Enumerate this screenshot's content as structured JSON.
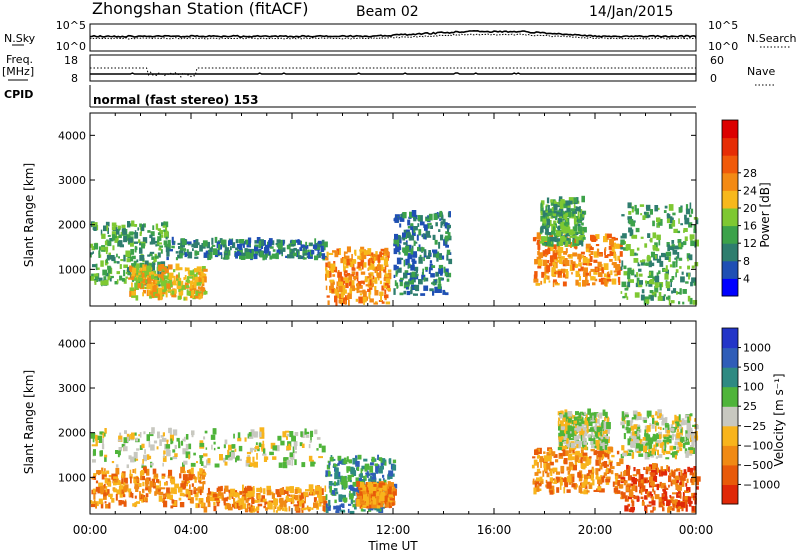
{
  "header": {
    "station": "Zhongshan Station (fitACF)",
    "beam": "Beam 02",
    "date": "14/Jan/2015"
  },
  "top_panel": {
    "left_label": "N.Sky",
    "right_label": "N.Search",
    "ticks_left": [
      "10^5",
      "10^0"
    ],
    "ticks_right": [
      "10^5",
      "10^0"
    ]
  },
  "freq_panel": {
    "left_label_line1": "Freq.",
    "left_label_line2": "[MHz]",
    "right_label": "Nave",
    "ticks_left": [
      "18",
      "8"
    ],
    "ticks_right": [
      "60",
      "0"
    ]
  },
  "cpid": {
    "label": "CPID",
    "text": "normal (fast stereo) 153"
  },
  "chart_data": [
    {
      "type": "heatmap",
      "title": "",
      "xlabel": "Time UT",
      "ylabel": "Slant Range [km]",
      "xlim": [
        "00:00",
        "24:00"
      ],
      "ylim": [
        180,
        4500
      ],
      "x_ticks": [
        "00:00",
        "04:00",
        "08:00",
        "12:00",
        "16:00",
        "20:00",
        "00:00"
      ],
      "y_ticks": [
        1000,
        2000,
        3000,
        4000
      ],
      "colorbar": {
        "label": "Power [dB]",
        "ticks": [
          "4",
          "8",
          "12",
          "16",
          "20",
          "24",
          "28"
        ],
        "colors": [
          "#0000ff",
          "#1f4fb4",
          "#2e7d6e",
          "#3ca24a",
          "#7ec832",
          "#f7b81c",
          "#f38a14",
          "#f05a0a",
          "#e62d05",
          "#dc0000"
        ]
      },
      "regions": [
        {
          "t": [
            0.0,
            3.0
          ],
          "r": [
            600,
            2000
          ],
          "level": 3
        },
        {
          "t": [
            3.0,
            9.3
          ],
          "r": [
            1200,
            1600
          ],
          "level": 2
        },
        {
          "t": [
            1.5,
            4.5
          ],
          "r": [
            300,
            1000
          ],
          "level": 5
        },
        {
          "t": [
            9.3,
            11.8
          ],
          "r": [
            180,
            1400
          ],
          "level": 6
        },
        {
          "t": [
            12.0,
            14.2
          ],
          "r": [
            400,
            2200
          ],
          "level": 2
        },
        {
          "t": [
            17.5,
            21.0
          ],
          "r": [
            600,
            1700
          ],
          "level": 6
        },
        {
          "t": [
            17.8,
            19.5
          ],
          "r": [
            1500,
            2500
          ],
          "level": 3
        },
        {
          "t": [
            21.0,
            24.0
          ],
          "r": [
            200,
            2400
          ],
          "level": 3
        }
      ]
    },
    {
      "type": "heatmap",
      "title": "",
      "xlabel": "Time UT",
      "ylabel": "Slant Range [km]",
      "xlim": [
        "00:00",
        "24:00"
      ],
      "ylim": [
        180,
        4500
      ],
      "x_ticks": [
        "00:00",
        "04:00",
        "08:00",
        "12:00",
        "16:00",
        "20:00",
        "00:00"
      ],
      "y_ticks": [
        1000,
        2000,
        3000,
        4000
      ],
      "colorbar": {
        "label": "Velocity [m s⁻¹]",
        "ticks": [
          "1000",
          "500",
          "100",
          "25",
          "−25",
          "−100",
          "−500",
          "−1000"
        ],
        "colors": [
          "#2335c8",
          "#2f5db8",
          "#2e8a82",
          "#4fb43a",
          "#c8c8c0",
          "#f8b41c",
          "#f08a14",
          "#e85a0a",
          "#e02808"
        ]
      },
      "regions": [
        {
          "t": [
            0.0,
            9.3
          ],
          "r": [
            1200,
            2000
          ],
          "level": 4
        },
        {
          "t": [
            0.0,
            4.5
          ],
          "r": [
            300,
            1100
          ],
          "level": 6
        },
        {
          "t": [
            4.5,
            9.3
          ],
          "r": [
            200,
            700
          ],
          "level": 6
        },
        {
          "t": [
            9.3,
            12.0
          ],
          "r": [
            180,
            1400
          ],
          "level": 2
        },
        {
          "t": [
            10.5,
            12.0
          ],
          "r": [
            300,
            800
          ],
          "level": 6
        },
        {
          "t": [
            17.5,
            21.0
          ],
          "r": [
            600,
            1600
          ],
          "level": 6
        },
        {
          "t": [
            18.5,
            20.5
          ],
          "r": [
            1600,
            2400
          ],
          "level": 4
        },
        {
          "t": [
            21.0,
            24.0
          ],
          "r": [
            1400,
            2400
          ],
          "level": 4
        },
        {
          "t": [
            21.0,
            24.0
          ],
          "r": [
            200,
            1200
          ],
          "level": 7
        }
      ]
    }
  ]
}
